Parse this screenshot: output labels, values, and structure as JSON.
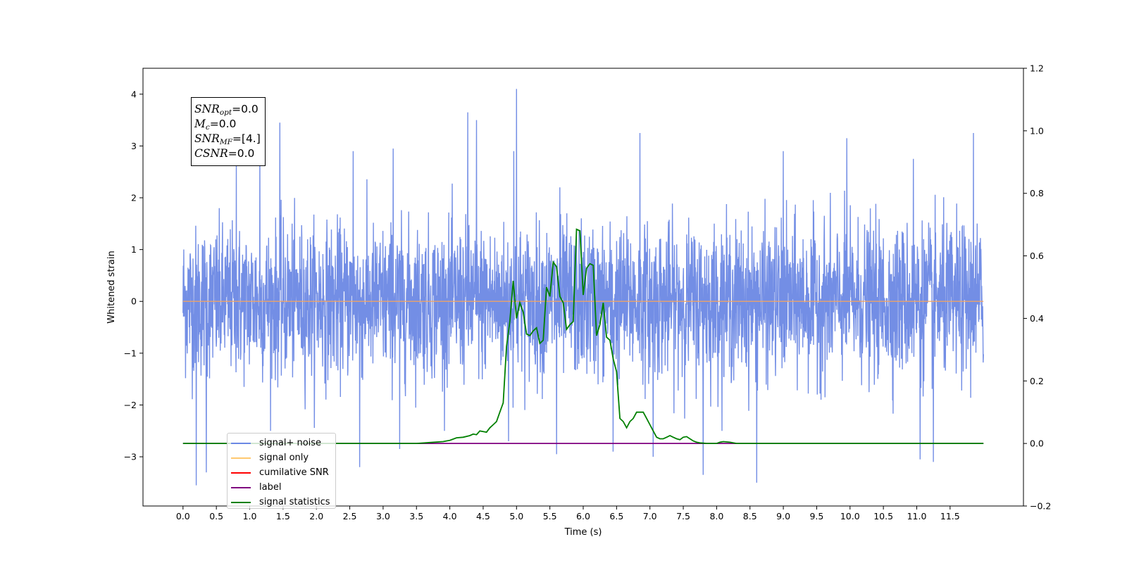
{
  "chart_data": {
    "type": "line",
    "xlabel": "Time (s)",
    "ylabel": "Whitened strain",
    "xlim": [
      -0.6,
      12.6
    ],
    "ylim": [
      -3.95,
      4.5
    ],
    "y2lim": [
      -0.2,
      1.2
    ],
    "xticks": [
      "0.0",
      "0.5",
      "1.0",
      "1.5",
      "2.0",
      "2.5",
      "3.0",
      "3.5",
      "4.0",
      "4.5",
      "5.0",
      "5.5",
      "6.0",
      "6.5",
      "7.0",
      "7.5",
      "8.0",
      "8.5",
      "9.0",
      "9.5",
      "10.0",
      "10.5",
      "11.0",
      "11.5"
    ],
    "yticks": [
      "4",
      "3",
      "2",
      "1",
      "0",
      "−1",
      "−2",
      "−3"
    ],
    "y2ticks": [
      "1.2",
      "1.0",
      "0.8",
      "0.6",
      "0.4",
      "0.2",
      "0.0",
      "−0.2"
    ],
    "annotation": {
      "snr_opt": {
        "base": "SNR",
        "sub": "opt",
        "value": "=0.0"
      },
      "mc": {
        "base": "M",
        "sub": "c",
        "value": "=0.0"
      },
      "snr_mf": {
        "base": "SNR",
        "sub": "MF",
        "value": "=[4.]"
      },
      "csnr": {
        "base": "CSNR",
        "sub": "",
        "value": "=0.0"
      }
    },
    "legend": [
      {
        "label": "signal+ noise",
        "color": "#6b88e4"
      },
      {
        "label": "signal only",
        "color": "#ffc870"
      },
      {
        "label": "cumilative SNR",
        "color": "#ff0000"
      },
      {
        "label": "label",
        "color": "#7f007f"
      },
      {
        "label": "signal statistics",
        "color": "#008000"
      }
    ],
    "series": [
      {
        "name": "signal+ noise",
        "style": "dense noise, envelope approx ±1.6, peaks up to 4.1 near t=5.0, down to −3.55 near t=0.2",
        "x_range": [
          0.0,
          12.0
        ],
        "peaks": [
          [
            0.2,
            -3.55
          ],
          [
            0.35,
            -3.3
          ],
          [
            0.8,
            2.7
          ],
          [
            1.15,
            2.9
          ],
          [
            1.45,
            3.45
          ],
          [
            2.55,
            2.9
          ],
          [
            2.65,
            -3.2
          ],
          [
            3.15,
            2.95
          ],
          [
            3.25,
            -2.85
          ],
          [
            4.27,
            3.65
          ],
          [
            4.4,
            3.5
          ],
          [
            4.88,
            -2.7
          ],
          [
            4.96,
            2.9
          ],
          [
            5.0,
            4.1
          ],
          [
            5.65,
            2.2
          ],
          [
            5.6,
            -2.95
          ],
          [
            6.45,
            -2.9
          ],
          [
            6.85,
            3.25
          ],
          [
            7.05,
            -3.0
          ],
          [
            7.8,
            -3.35
          ],
          [
            8.6,
            -3.5
          ],
          [
            9.0,
            2.9
          ],
          [
            9.95,
            3.15
          ],
          [
            10.95,
            2.75
          ],
          [
            11.05,
            -3.05
          ],
          [
            11.25,
            -3.1
          ],
          [
            11.85,
            3.25
          ]
        ]
      },
      {
        "name": "signal only",
        "x": [
          0.0,
          12.0
        ],
        "y": [
          0.0,
          0.0
        ]
      },
      {
        "name": "label",
        "axis": "right",
        "x": [
          0.0,
          12.0
        ],
        "y": [
          0.0,
          0.0
        ]
      },
      {
        "name": "signal statistics",
        "axis": "right",
        "x": [
          0.0,
          3.5,
          3.7,
          3.9,
          4.0,
          4.1,
          4.2,
          4.3,
          4.35,
          4.4,
          4.45,
          4.5,
          4.55,
          4.6,
          4.65,
          4.7,
          4.75,
          4.8,
          4.85,
          4.9,
          4.95,
          5.0,
          5.05,
          5.1,
          5.15,
          5.2,
          5.25,
          5.3,
          5.35,
          5.4,
          5.45,
          5.5,
          5.55,
          5.6,
          5.65,
          5.7,
          5.75,
          5.8,
          5.85,
          5.9,
          5.95,
          6.0,
          6.05,
          6.1,
          6.15,
          6.2,
          6.25,
          6.3,
          6.35,
          6.4,
          6.45,
          6.5,
          6.55,
          6.6,
          6.65,
          6.7,
          6.75,
          6.8,
          6.85,
          6.9,
          6.95,
          7.0,
          7.05,
          7.1,
          7.15,
          7.2,
          7.25,
          7.3,
          7.35,
          7.4,
          7.45,
          7.5,
          7.55,
          7.6,
          7.65,
          7.7,
          7.75,
          7.8,
          7.85,
          7.9,
          7.95,
          8.0,
          8.05,
          8.1,
          8.2,
          8.3,
          8.5,
          8.6,
          8.7,
          8.8,
          8.85,
          8.9,
          8.95,
          9.0,
          9.05,
          9.1,
          9.2,
          12.0
        ],
        "y": [
          0.0,
          0.0,
          0.003,
          0.006,
          0.01,
          0.018,
          0.02,
          0.025,
          0.03,
          0.028,
          0.04,
          0.038,
          0.036,
          0.05,
          0.06,
          0.07,
          0.1,
          0.13,
          0.31,
          0.39,
          0.52,
          0.4,
          0.45,
          0.42,
          0.35,
          0.345,
          0.36,
          0.37,
          0.32,
          0.33,
          0.5,
          0.47,
          0.58,
          0.565,
          0.47,
          0.45,
          0.365,
          0.38,
          0.39,
          0.685,
          0.68,
          0.475,
          0.56,
          0.575,
          0.57,
          0.345,
          0.38,
          0.45,
          0.34,
          0.33,
          0.27,
          0.23,
          0.08,
          0.07,
          0.05,
          0.07,
          0.08,
          0.1,
          0.1,
          0.1,
          0.08,
          0.06,
          0.04,
          0.02,
          0.015,
          0.015,
          0.02,
          0.025,
          0.02,
          0.015,
          0.012,
          0.02,
          0.022,
          0.015,
          0.008,
          0.004,
          0.002,
          0.001,
          0.0,
          0.0,
          0.0,
          0.0,
          0.004,
          0.006,
          0.004,
          0.0,
          0.0,
          0.0,
          0.0,
          0.0,
          0.0,
          0.0,
          0.0,
          0.0,
          0.0,
          0.0,
          0.0,
          0.0
        ]
      }
    ]
  }
}
